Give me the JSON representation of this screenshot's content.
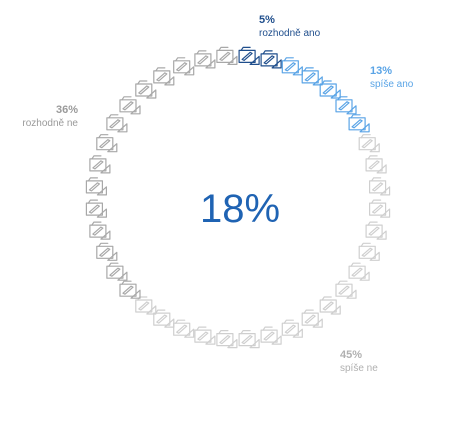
{
  "chart_data": {
    "type": "pie",
    "center_value": "18%",
    "categories": [
      "rozhodně ano",
      "spíše ano",
      "spíše ne",
      "rozhodně ne"
    ],
    "values": [
      5,
      13,
      45,
      36
    ],
    "value_labels": [
      "5%",
      "13%",
      "45%",
      "36%"
    ],
    "colors": [
      "#1f4e8c",
      "#5aa4e6",
      "#cfcfcf",
      "#a8a8a8"
    ],
    "icon": "drawing-board-icon",
    "total_icons": 40,
    "start_position": "top, clockwise"
  },
  "colors": {
    "center_value": "#1f63b3",
    "rozhodne_ano": "#1f4e8c",
    "spise_ano": "#5aa4e6",
    "spise_ne": "#cfcfcf",
    "rozhodne_ne": "#a8a8a8",
    "spise_ne_text": "#b0b0b0",
    "rozhodne_ne_text": "#9a9a9a"
  }
}
